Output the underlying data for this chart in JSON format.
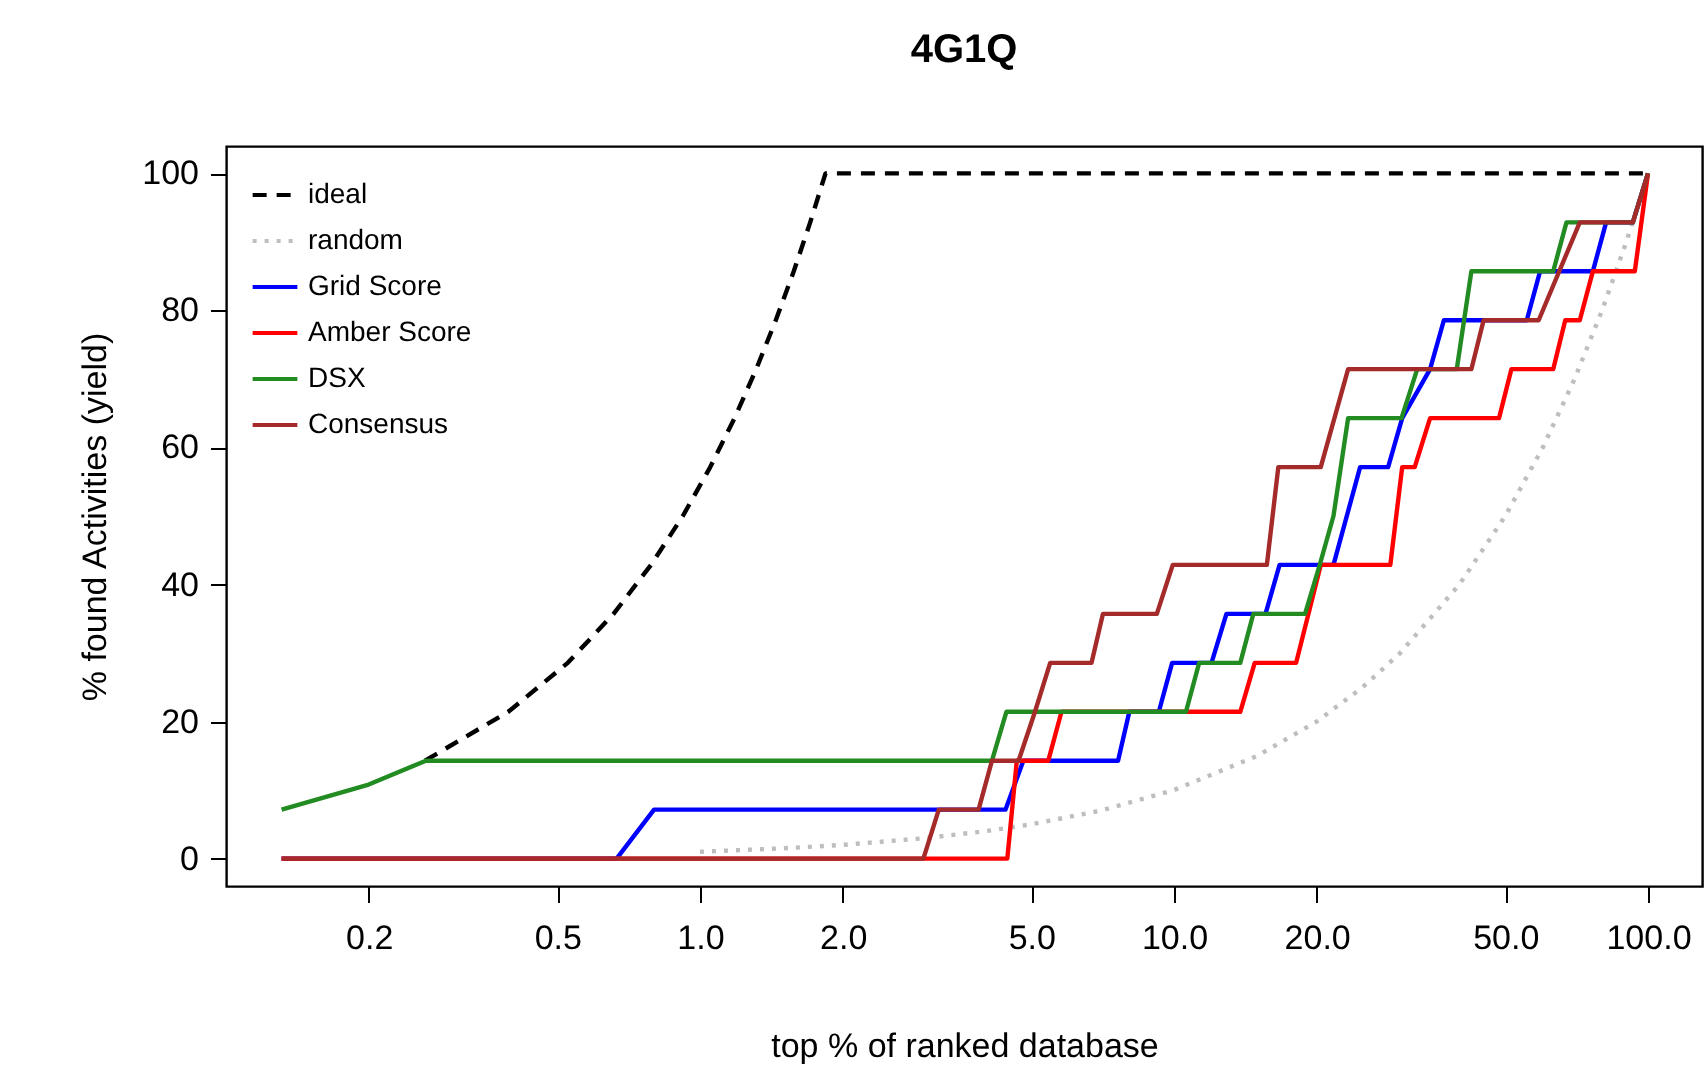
{
  "chart_data": {
    "type": "line",
    "title": "4G1Q",
    "xlabel": "top % of ranked database",
    "ylabel": "% found Activities (yield)",
    "log": "x",
    "xlim": [
      0.1,
      130
    ],
    "ylim": [
      -4,
      104
    ],
    "xticks": [
      {
        "value": 0.2,
        "label": "0.2"
      },
      {
        "value": 0.5,
        "label": "0.5"
      },
      {
        "value": 1,
        "label": "1.0"
      },
      {
        "value": 2,
        "label": "2.0"
      },
      {
        "value": 5,
        "label": "5.0"
      },
      {
        "value": 10,
        "label": "10.0"
      },
      {
        "value": 20,
        "label": "20.0"
      },
      {
        "value": 50,
        "label": "50.0"
      },
      {
        "value": 100,
        "label": "100.0"
      }
    ],
    "yticks": [
      0,
      20,
      40,
      60,
      80,
      100
    ],
    "grid": false,
    "legend": "top left",
    "marker": "none",
    "series": [
      {
        "name": "ideal",
        "color": "#000000",
        "line_style": "dashed",
        "x": [
          0.263,
          0.394,
          0.526,
          0.657,
          0.788,
          0.92,
          1.051,
          1.183,
          1.314,
          1.445,
          1.577,
          1.708,
          1.84,
          100
        ],
        "values": [
          14.29,
          21.43,
          28.57,
          35.71,
          42.86,
          50,
          57.14,
          64.29,
          71.43,
          78.57,
          85.71,
          92.86,
          100,
          100
        ]
      },
      {
        "name": "random",
        "color": "#bebebe",
        "line_style": "dotted",
        "x": [
          1,
          1.5,
          2,
          3,
          4,
          5,
          7,
          10,
          15,
          20,
          25,
          30,
          40,
          50,
          60,
          70,
          80,
          90,
          100
        ],
        "values": [
          1,
          1.5,
          2,
          3,
          4,
          5,
          7,
          10,
          15,
          20,
          25,
          30,
          40,
          50,
          60,
          70,
          80,
          90,
          100
        ]
      },
      {
        "name": "Grid Score",
        "color": "#0000ff",
        "line_style": "solid",
        "x": [
          0.131,
          0.667,
          0.8,
          4.41,
          4.81,
          7.62,
          8.05,
          9.29,
          9.91,
          12.0,
          12.9,
          15.6,
          16.7,
          21.7,
          24.7,
          28.3,
          30.3,
          34.7,
          37.1,
          55.5,
          59.2,
          76.5,
          81.6,
          92.9,
          100
        ],
        "values": [
          0,
          0,
          7.14,
          7.14,
          14.29,
          14.29,
          21.43,
          21.43,
          28.57,
          28.57,
          35.71,
          35.71,
          42.86,
          42.86,
          57.14,
          57.14,
          64.29,
          71.43,
          78.57,
          78.57,
          85.71,
          85.71,
          92.86,
          92.86,
          100
        ]
      },
      {
        "name": "Amber Score",
        "color": "#ff0000",
        "line_style": "solid",
        "x": [
          0.131,
          4.45,
          4.66,
          5.43,
          5.79,
          13.8,
          14.8,
          18.1,
          20.4,
          28.6,
          30.3,
          32.2,
          34.7,
          48.5,
          51.5,
          63.1,
          66.9,
          71.8,
          76.5,
          93.8,
          100
        ],
        "values": [
          0,
          0,
          14.29,
          14.29,
          21.43,
          21.43,
          28.57,
          28.57,
          42.86,
          42.86,
          57.14,
          57.14,
          64.29,
          64.29,
          71.43,
          71.43,
          78.57,
          78.57,
          85.71,
          85.71,
          100
        ]
      },
      {
        "name": "DSX",
        "color": "#228b22",
        "line_style": "solid",
        "x": [
          0.131,
          0.2,
          0.264,
          4.13,
          4.43,
          10.6,
          11.3,
          13.8,
          14.7,
          18.9,
          20.3,
          21.7,
          23.3,
          30.2,
          32.6,
          39.5,
          42.4,
          63.1,
          67.3,
          92.9,
          100
        ],
        "values": [
          7.14,
          10.8,
          14.29,
          14.29,
          21.43,
          21.43,
          28.57,
          28.57,
          35.71,
          35.71,
          42.86,
          50,
          64.29,
          64.29,
          71.43,
          71.43,
          85.71,
          85.71,
          92.86,
          92.86,
          100
        ]
      },
      {
        "name": "Consensus",
        "color": "#a52a2a",
        "line_style": "solid",
        "x": [
          0.131,
          2.96,
          3.19,
          3.87,
          4.13,
          4.7,
          5.09,
          5.48,
          6.7,
          7.08,
          9.2,
          9.94,
          15.7,
          16.6,
          20.4,
          23.3,
          42.4,
          45.0,
          58.8,
          71.8,
          92.9,
          100
        ],
        "values": [
          0,
          0,
          7.14,
          7.14,
          14.29,
          14.29,
          21.43,
          28.57,
          28.57,
          35.71,
          35.71,
          42.86,
          42.86,
          57.14,
          57.14,
          71.43,
          71.43,
          78.57,
          78.57,
          92.86,
          92.86,
          100
        ]
      }
    ]
  }
}
